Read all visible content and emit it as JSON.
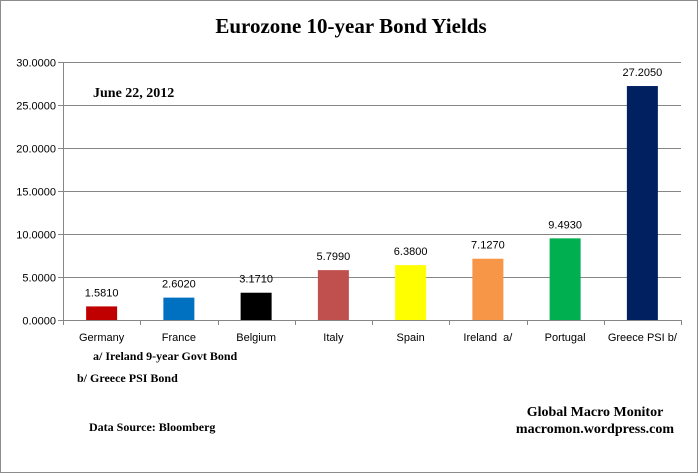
{
  "chart_data": {
    "type": "bar",
    "title": "Eurozone 10-year Bond Yields",
    "date_note": "June 22, 2012",
    "categories": [
      "Germany",
      "France",
      "Belgium",
      "Italy",
      "Spain",
      "Ireland  a/",
      "Portugal",
      "Greece PSI b/"
    ],
    "values": [
      1.581,
      2.602,
      3.171,
      5.799,
      6.38,
      7.127,
      9.493,
      27.205
    ],
    "value_labels": [
      "1.5810",
      "2.6020",
      "3.1710",
      "5.7990",
      "6.3800",
      "7.1270",
      "9.4930",
      "27.2050"
    ],
    "colors": [
      "#c00000",
      "#0070c0",
      "#000000",
      "#c0504d",
      "#ffff00",
      "#f79646",
      "#00b050",
      "#002060"
    ],
    "ylim": [
      0,
      30
    ],
    "yticks": [
      "0.0000",
      "5.0000",
      "10.0000",
      "15.0000",
      "20.0000",
      "25.0000",
      "30.0000"
    ],
    "grid": true,
    "legend": "none",
    "xlabel": "",
    "ylabel": "",
    "footnotes": [
      "a/ Ireland 9-year Govt Bond",
      "b/  Greece PSI Bond"
    ],
    "source": "Data Source:  Bloomberg",
    "credit": [
      "Global Macro Monitor",
      "macromon.wordpress.com"
    ]
  }
}
